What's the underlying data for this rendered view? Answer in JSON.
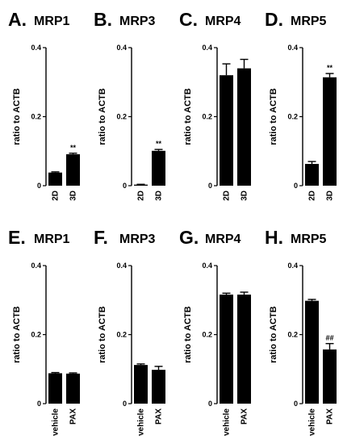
{
  "chart_data": [
    {
      "letter": "A.",
      "title": "MRP1",
      "type": "bar",
      "ylabel": "ratio to ACTB",
      "ylim": [
        0,
        0.4
      ],
      "yticks": [
        "0",
        "0.2",
        "0.4"
      ],
      "categories": [
        "2D",
        "3D"
      ],
      "values": [
        0.038,
        0.091
      ],
      "errors": [
        0.002,
        0.003
      ],
      "annotations": [
        "",
        "**"
      ]
    },
    {
      "letter": "B.",
      "title": "MRP3",
      "type": "bar",
      "ylabel": "ratio to ACTB",
      "ylim": [
        0,
        0.4
      ],
      "yticks": [
        "0",
        "0.2",
        "0.4"
      ],
      "categories": [
        "2D",
        "3D"
      ],
      "values": [
        0.003,
        0.101
      ],
      "errors": [
        0.001,
        0.004
      ],
      "annotations": [
        "",
        "**"
      ]
    },
    {
      "letter": "C.",
      "title": "MRP4",
      "type": "bar",
      "ylabel": "ratio to ACTB",
      "ylim": [
        0,
        0.4
      ],
      "yticks": [
        "0",
        "0.2",
        "0.4"
      ],
      "categories": [
        "2D",
        "3D"
      ],
      "values": [
        0.32,
        0.34
      ],
      "errors": [
        0.033,
        0.026
      ],
      "annotations": [
        "",
        ""
      ]
    },
    {
      "letter": "D.",
      "title": "MRP5",
      "type": "bar",
      "ylabel": "ratio to ACTB",
      "ylim": [
        0,
        0.4
      ],
      "yticks": [
        "0",
        "0.2",
        "0.4"
      ],
      "categories": [
        "2D",
        "3D"
      ],
      "values": [
        0.063,
        0.314
      ],
      "errors": [
        0.007,
        0.011
      ],
      "annotations": [
        "",
        "**"
      ]
    },
    {
      "letter": "E.",
      "title": "MRP1",
      "type": "bar",
      "ylabel": "ratio to ACTB",
      "ylim": [
        0,
        0.4
      ],
      "yticks": [
        "0",
        "0.2",
        "0.4"
      ],
      "categories": [
        "vehicle",
        "PAX"
      ],
      "values": [
        0.088,
        0.087
      ],
      "errors": [
        0.002,
        0.002
      ],
      "annotations": [
        "",
        ""
      ]
    },
    {
      "letter": "F.",
      "title": "MRP3",
      "type": "bar",
      "ylabel": "ratio to ACTB",
      "ylim": [
        0,
        0.4
      ],
      "yticks": [
        "0",
        "0.2",
        "0.4"
      ],
      "categories": [
        "vehicle",
        "PAX"
      ],
      "values": [
        0.112,
        0.098
      ],
      "errors": [
        0.003,
        0.01
      ],
      "annotations": [
        "",
        ""
      ]
    },
    {
      "letter": "G.",
      "title": "MRP4",
      "type": "bar",
      "ylabel": "ratio to ACTB",
      "ylim": [
        0,
        0.4
      ],
      "yticks": [
        "0",
        "0.2",
        "0.4"
      ],
      "categories": [
        "vehicle",
        "PAX"
      ],
      "values": [
        0.316,
        0.316
      ],
      "errors": [
        0.004,
        0.007
      ],
      "annotations": [
        "",
        ""
      ]
    },
    {
      "letter": "H.",
      "title": "MRP5",
      "type": "bar",
      "ylabel": "ratio to ACTB",
      "ylim": [
        0,
        0.4
      ],
      "yticks": [
        "0",
        "0.2",
        "0.4"
      ],
      "categories": [
        "vehicle",
        "PAX"
      ],
      "values": [
        0.298,
        0.157
      ],
      "errors": [
        0.004,
        0.017
      ],
      "annotations": [
        "",
        "##"
      ]
    }
  ]
}
